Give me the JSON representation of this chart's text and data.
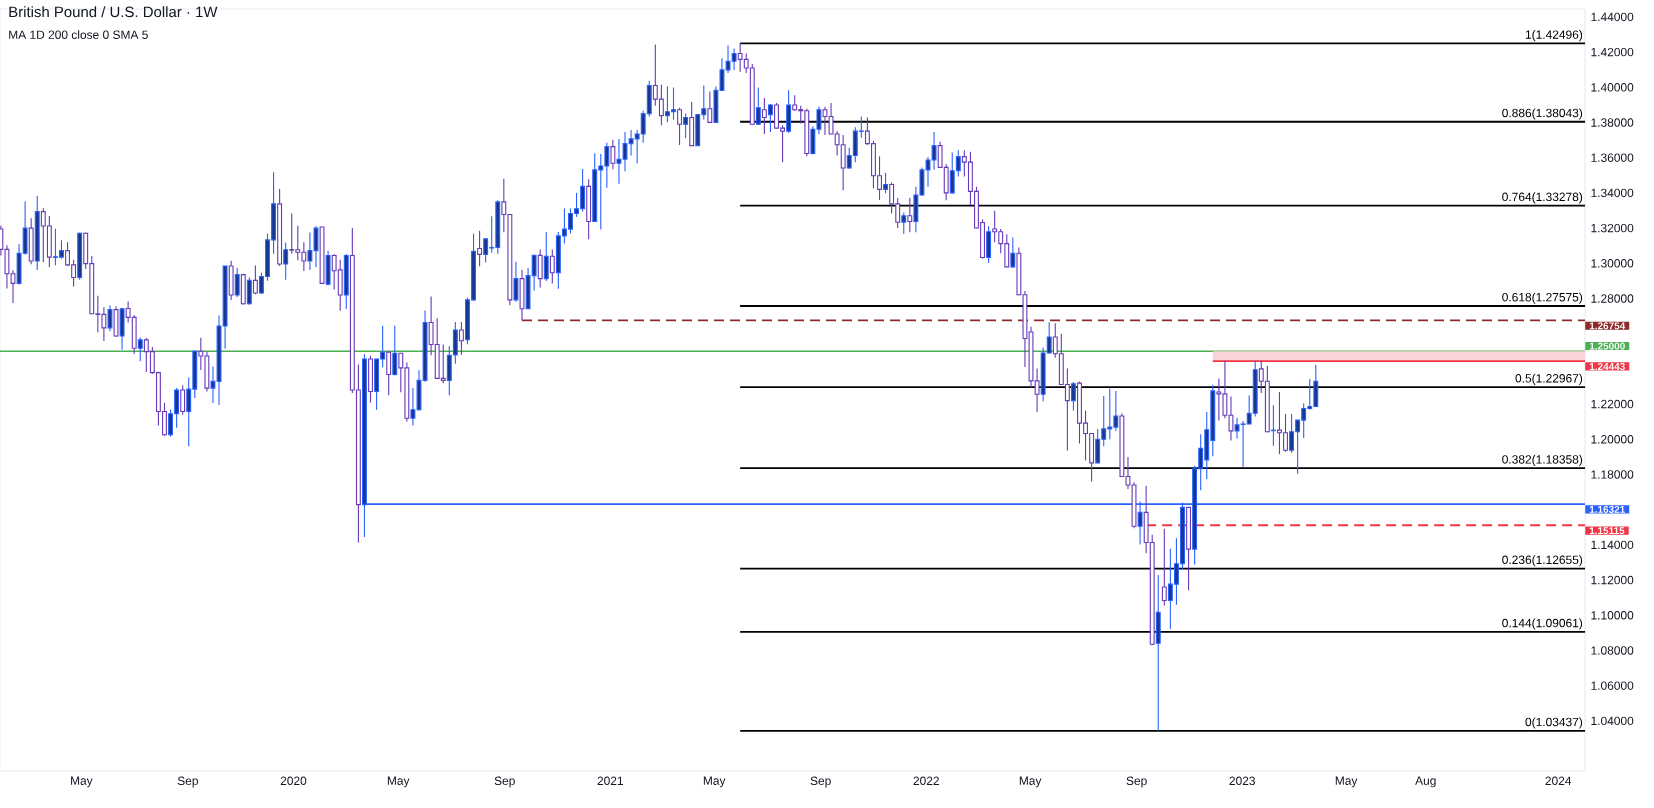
{
  "chart_data": {
    "type": "candlestick",
    "title": "British Pound / U.S. Dollar · 1W",
    "subtitle": "MA 1D 200 close 0 SMA 5",
    "x": [
      "2019-01-28",
      "2019-02-04",
      "2019-02-11",
      "2019-02-18",
      "2019-02-25",
      "2019-03-04",
      "2019-03-11",
      "2019-03-18",
      "2019-03-25",
      "2019-04-01",
      "2019-04-08",
      "2019-04-15",
      "2019-04-22",
      "2019-04-29",
      "2019-05-06",
      "2019-05-13",
      "2019-05-20",
      "2019-05-27",
      "2019-06-03",
      "2019-06-10",
      "2019-06-17",
      "2019-06-24",
      "2019-07-01",
      "2019-07-08",
      "2019-07-15",
      "2019-07-22",
      "2019-07-29",
      "2019-08-05",
      "2019-08-12",
      "2019-08-19",
      "2019-08-26",
      "2019-09-02",
      "2019-09-09",
      "2019-09-16",
      "2019-09-23",
      "2019-09-30",
      "2019-10-07",
      "2019-10-14",
      "2019-10-21",
      "2019-10-28",
      "2019-11-04",
      "2019-11-11",
      "2019-11-18",
      "2019-11-25",
      "2019-12-02",
      "2019-12-09",
      "2019-12-16",
      "2019-12-23",
      "2019-12-30",
      "2020-01-06",
      "2020-01-13",
      "2020-01-20",
      "2020-01-27",
      "2020-02-03",
      "2020-02-10",
      "2020-02-17",
      "2020-02-24",
      "2020-03-02",
      "2020-03-09",
      "2020-03-16",
      "2020-03-23",
      "2020-03-30",
      "2020-04-06",
      "2020-04-13",
      "2020-04-20",
      "2020-04-27",
      "2020-05-04",
      "2020-05-11",
      "2020-05-18",
      "2020-05-25",
      "2020-06-01",
      "2020-06-08",
      "2020-06-15",
      "2020-06-22",
      "2020-06-29",
      "2020-07-06",
      "2020-07-13",
      "2020-07-20",
      "2020-07-27",
      "2020-08-03",
      "2020-08-10",
      "2020-08-17",
      "2020-08-24",
      "2020-08-31",
      "2020-09-07",
      "2020-09-14",
      "2020-09-21",
      "2020-09-28",
      "2020-10-05",
      "2020-10-12",
      "2020-10-19",
      "2020-10-26",
      "2020-11-02",
      "2020-11-09",
      "2020-11-16",
      "2020-11-23",
      "2020-11-30",
      "2020-12-07",
      "2020-12-14",
      "2020-12-21",
      "2020-12-28",
      "2021-01-04",
      "2021-01-11",
      "2021-01-18",
      "2021-01-25",
      "2021-02-01",
      "2021-02-08",
      "2021-02-15",
      "2021-02-22",
      "2021-03-01",
      "2021-03-08",
      "2021-03-15",
      "2021-03-22",
      "2021-03-29",
      "2021-04-05",
      "2021-04-12",
      "2021-04-19",
      "2021-04-26",
      "2021-05-03",
      "2021-05-10",
      "2021-05-17",
      "2021-05-24",
      "2021-05-31",
      "2021-06-07",
      "2021-06-14",
      "2021-06-21",
      "2021-06-28",
      "2021-07-05",
      "2021-07-12",
      "2021-07-19",
      "2021-07-26",
      "2021-08-02",
      "2021-08-09",
      "2021-08-16",
      "2021-08-23",
      "2021-08-30",
      "2021-09-06",
      "2021-09-13",
      "2021-09-20",
      "2021-09-27",
      "2021-10-04",
      "2021-10-11",
      "2021-10-18",
      "2021-10-25",
      "2021-11-01",
      "2021-11-08",
      "2021-11-15",
      "2021-11-22",
      "2021-11-29",
      "2021-12-06",
      "2021-12-13",
      "2021-12-20",
      "2021-12-27",
      "2022-01-03",
      "2022-01-10",
      "2022-01-17",
      "2022-01-24",
      "2022-01-31",
      "2022-02-07",
      "2022-02-14",
      "2022-02-21",
      "2022-02-28",
      "2022-03-07",
      "2022-03-14",
      "2022-03-21",
      "2022-03-28",
      "2022-04-04",
      "2022-04-11",
      "2022-04-18",
      "2022-04-25",
      "2022-05-02",
      "2022-05-09",
      "2022-05-16",
      "2022-05-23",
      "2022-05-30",
      "2022-06-06",
      "2022-06-13",
      "2022-06-20",
      "2022-06-27",
      "2022-07-04",
      "2022-07-11",
      "2022-07-18",
      "2022-07-25",
      "2022-08-01",
      "2022-08-08",
      "2022-08-15",
      "2022-08-22",
      "2022-08-29",
      "2022-09-05",
      "2022-09-12",
      "2022-09-19",
      "2022-09-26",
      "2022-10-03",
      "2022-10-10",
      "2022-10-17",
      "2022-10-24",
      "2022-10-31",
      "2022-11-07",
      "2022-11-14",
      "2022-11-21",
      "2022-11-28",
      "2022-12-05",
      "2022-12-12",
      "2022-12-19",
      "2022-12-26",
      "2023-01-02",
      "2023-01-09",
      "2023-01-16",
      "2023-01-23",
      "2023-01-30",
      "2023-02-06",
      "2023-02-13",
      "2023-02-20",
      "2023-02-27",
      "2023-03-06",
      "2023-03-13",
      "2023-03-20",
      "2023-03-27"
    ],
    "ohlc": [
      [
        1.3195,
        1.3213,
        1.3044,
        1.3079
      ],
      [
        1.3079,
        1.3103,
        1.2857,
        1.2941
      ],
      [
        1.2941,
        1.296,
        1.2774,
        1.2886
      ],
      [
        1.2886,
        1.3109,
        1.288,
        1.3057
      ],
      [
        1.3057,
        1.3351,
        1.305,
        1.32
      ],
      [
        1.32,
        1.3256,
        1.2995,
        1.3013
      ],
      [
        1.3013,
        1.3384,
        1.2962,
        1.3294
      ],
      [
        1.3294,
        1.3313,
        1.3006,
        1.3212
      ],
      [
        1.3212,
        1.3269,
        1.2978,
        1.3035
      ],
      [
        1.3033,
        1.3197,
        1.2989,
        1.3037
      ],
      [
        1.3035,
        1.3131,
        1.3026,
        1.3072
      ],
      [
        1.3072,
        1.312,
        1.2984,
        1.2991
      ],
      [
        1.2991,
        1.302,
        1.2868,
        1.2919
      ],
      [
        1.2919,
        1.3175,
        1.2906,
        1.3171
      ],
      [
        1.3171,
        1.3175,
        1.2967,
        1.2998
      ],
      [
        1.2998,
        1.3041,
        1.271,
        1.2713
      ],
      [
        1.2713,
        1.2816,
        1.2609,
        1.271
      ],
      [
        1.271,
        1.275,
        1.2559,
        1.2633
      ],
      [
        1.2633,
        1.2761,
        1.2614,
        1.2737
      ],
      [
        1.2737,
        1.2756,
        1.2581,
        1.2587
      ],
      [
        1.2587,
        1.2747,
        1.2509,
        1.2741
      ],
      [
        1.2743,
        1.2783,
        1.2664,
        1.2693
      ],
      [
        1.2693,
        1.2706,
        1.2484,
        1.2517
      ],
      [
        1.2517,
        1.2579,
        1.2443,
        1.2565
      ],
      [
        1.2565,
        1.2577,
        1.2383,
        1.2498
      ],
      [
        1.2498,
        1.2524,
        1.2373,
        1.2379
      ],
      [
        1.2379,
        1.2384,
        1.2079,
        1.2158
      ],
      [
        1.2158,
        1.2208,
        1.202,
        1.2026
      ],
      [
        1.2026,
        1.2169,
        1.2015,
        1.2145
      ],
      [
        1.2145,
        1.2291,
        1.2065,
        1.228
      ],
      [
        1.228,
        1.2307,
        1.214,
        1.2158
      ],
      [
        1.2158,
        1.2351,
        1.196,
        1.2285
      ],
      [
        1.2285,
        1.2506,
        1.2234,
        1.25
      ],
      [
        1.25,
        1.2577,
        1.2394,
        1.2473
      ],
      [
        1.2473,
        1.2498,
        1.2272,
        1.2291
      ],
      [
        1.2291,
        1.2414,
        1.2206,
        1.2329
      ],
      [
        1.2329,
        1.2704,
        1.2195,
        1.2644
      ],
      [
        1.2644,
        1.2985,
        1.2515,
        1.2985
      ],
      [
        1.2985,
        1.3015,
        1.2791,
        1.282
      ],
      [
        1.282,
        1.2974,
        1.2809,
        1.2936
      ],
      [
        1.2936,
        1.2941,
        1.2765,
        1.277
      ],
      [
        1.277,
        1.2919,
        1.2765,
        1.2903
      ],
      [
        1.2903,
        1.2987,
        1.2824,
        1.2831
      ],
      [
        1.2831,
        1.2947,
        1.2826,
        1.2925
      ],
      [
        1.2925,
        1.3169,
        1.2901,
        1.3133
      ],
      [
        1.3133,
        1.3517,
        1.3055,
        1.3338
      ],
      [
        1.3338,
        1.3423,
        1.2985,
        1.2996
      ],
      [
        1.2996,
        1.3118,
        1.2906,
        1.3077
      ],
      [
        1.3078,
        1.3283,
        1.3055,
        1.3075
      ],
      [
        1.3077,
        1.3213,
        1.3017,
        1.3063
      ],
      [
        1.3063,
        1.312,
        1.2956,
        1.3013
      ],
      [
        1.3013,
        1.3175,
        1.2962,
        1.3072
      ],
      [
        1.3072,
        1.321,
        1.2978,
        1.32
      ],
      [
        1.3206,
        1.3208,
        1.2884,
        1.2886
      ],
      [
        1.2881,
        1.307,
        1.2875,
        1.3044
      ],
      [
        1.3044,
        1.3053,
        1.2851,
        1.2958
      ],
      [
        1.2963,
        1.302,
        1.273,
        1.282
      ],
      [
        1.282,
        1.3053,
        1.2741,
        1.3044
      ],
      [
        1.3044,
        1.32,
        1.2263,
        1.228
      ],
      [
        1.228,
        1.2425,
        1.1414,
        1.1629
      ],
      [
        1.1629,
        1.2484,
        1.1445,
        1.2456
      ],
      [
        1.2456,
        1.2475,
        1.2208,
        1.2272
      ],
      [
        1.2272,
        1.2458,
        1.2168,
        1.2456
      ],
      [
        1.2456,
        1.2645,
        1.241,
        1.2495
      ],
      [
        1.2495,
        1.2502,
        1.225,
        1.2368
      ],
      [
        1.2368,
        1.2645,
        1.2362,
        1.2489
      ],
      [
        1.2489,
        1.249,
        1.2267,
        1.2406
      ],
      [
        1.2406,
        1.2436,
        1.2101,
        1.212
      ],
      [
        1.212,
        1.2291,
        1.2079,
        1.2168
      ],
      [
        1.2168,
        1.2392,
        1.2162,
        1.2335
      ],
      [
        1.2335,
        1.2732,
        1.2327,
        1.2664
      ],
      [
        1.2664,
        1.2811,
        1.2478,
        1.2539
      ],
      [
        1.2539,
        1.2688,
        1.2344,
        1.2346
      ],
      [
        1.2346,
        1.2539,
        1.2318,
        1.2335
      ],
      [
        1.2335,
        1.253,
        1.225,
        1.2478
      ],
      [
        1.248,
        1.2667,
        1.243,
        1.2621
      ],
      [
        1.2621,
        1.2667,
        1.248,
        1.256
      ],
      [
        1.2566,
        1.2805,
        1.254,
        1.2792
      ],
      [
        1.2792,
        1.3169,
        1.2786,
        1.3068
      ],
      [
        1.3084,
        1.3185,
        1.2983,
        1.3051
      ],
      [
        1.3051,
        1.3142,
        1.3005,
        1.3139
      ],
      [
        1.3087,
        1.3268,
        1.306,
        1.309
      ],
      [
        1.309,
        1.3358,
        1.3055,
        1.3349
      ],
      [
        1.3349,
        1.3481,
        1.3176,
        1.3277
      ],
      [
        1.3277,
        1.328,
        1.2762,
        1.2792
      ],
      [
        1.2792,
        1.3009,
        1.2781,
        1.2913
      ],
      [
        1.2913,
        1.2963,
        1.2676,
        1.2742
      ],
      [
        1.2742,
        1.2974,
        1.274,
        1.293
      ],
      [
        1.293,
        1.3047,
        1.2845,
        1.3045
      ],
      [
        1.3045,
        1.3079,
        1.2862,
        1.2913
      ],
      [
        1.2913,
        1.3178,
        1.29,
        1.304
      ],
      [
        1.304,
        1.3079,
        1.2886,
        1.2946
      ],
      [
        1.2946,
        1.3178,
        1.2856,
        1.3156
      ],
      [
        1.3156,
        1.3312,
        1.3112,
        1.3194
      ],
      [
        1.3194,
        1.3312,
        1.317,
        1.3283
      ],
      [
        1.3283,
        1.34,
        1.3264,
        1.331
      ],
      [
        1.331,
        1.3536,
        1.3294,
        1.3437
      ],
      [
        1.3437,
        1.3477,
        1.3137,
        1.3238
      ],
      [
        1.3238,
        1.3626,
        1.3236,
        1.3531
      ],
      [
        1.3531,
        1.3621,
        1.3192,
        1.3553
      ],
      [
        1.3553,
        1.3685,
        1.343,
        1.3663
      ],
      [
        1.3663,
        1.3702,
        1.3534,
        1.3569
      ],
      [
        1.3569,
        1.3707,
        1.3452,
        1.3591
      ],
      [
        1.3591,
        1.3746,
        1.3523,
        1.368
      ],
      [
        1.368,
        1.3757,
        1.3612,
        1.3707
      ],
      [
        1.3707,
        1.3757,
        1.3567,
        1.3735
      ],
      [
        1.3735,
        1.3867,
        1.3685,
        1.385
      ],
      [
        1.385,
        1.4038,
        1.3834,
        1.401
      ],
      [
        1.401,
        1.4244,
        1.3895,
        1.3933
      ],
      [
        1.3933,
        1.4016,
        1.3784,
        1.3839
      ],
      [
        1.3839,
        1.4005,
        1.3801,
        1.3861
      ],
      [
        1.3861,
        1.3999,
        1.3816,
        1.3873
      ],
      [
        1.3873,
        1.3884,
        1.3672,
        1.379
      ],
      [
        1.379,
        1.3851,
        1.3711,
        1.3829
      ],
      [
        1.3829,
        1.3917,
        1.3667,
        1.3669
      ],
      [
        1.3669,
        1.3847,
        1.3667,
        1.3845
      ],
      [
        1.3845,
        1.401,
        1.3817,
        1.3878
      ],
      [
        1.3878,
        1.3977,
        1.3799,
        1.3801
      ],
      [
        1.3801,
        1.4005,
        1.3799,
        1.3983
      ],
      [
        1.3983,
        1.4165,
        1.3981,
        1.4099
      ],
      [
        1.4099,
        1.4238,
        1.4082,
        1.4148
      ],
      [
        1.4148,
        1.422,
        1.4099,
        1.4192
      ],
      [
        1.4192,
        1.425,
        1.4088,
        1.4159
      ],
      [
        1.4159,
        1.4192,
        1.4082,
        1.411
      ],
      [
        1.411,
        1.4132,
        1.3788,
        1.379
      ],
      [
        1.379,
        1.3999,
        1.3786,
        1.3884
      ],
      [
        1.3873,
        1.3939,
        1.3735,
        1.3829
      ],
      [
        1.3845,
        1.3906,
        1.3746,
        1.39
      ],
      [
        1.39,
        1.3911,
        1.3766,
        1.3768
      ],
      [
        1.3768,
        1.3784,
        1.3575,
        1.3751
      ],
      [
        1.3751,
        1.3983,
        1.374,
        1.39
      ],
      [
        1.39,
        1.3955,
        1.3867,
        1.3873
      ],
      [
        1.3873,
        1.3895,
        1.3795,
        1.3867
      ],
      [
        1.3867,
        1.3878,
        1.3608,
        1.3624
      ],
      [
        1.3624,
        1.3779,
        1.3619,
        1.3762
      ],
      [
        1.3762,
        1.3889,
        1.3735,
        1.3873
      ],
      [
        1.3873,
        1.3889,
        1.3729,
        1.3834
      ],
      [
        1.3834,
        1.3911,
        1.3733,
        1.3735
      ],
      [
        1.3735,
        1.3751,
        1.3613,
        1.3674
      ],
      [
        1.3674,
        1.3729,
        1.3415,
        1.3542
      ],
      [
        1.3542,
        1.3657,
        1.3536,
        1.3613
      ],
      [
        1.3613,
        1.3773,
        1.3575,
        1.3751
      ],
      [
        1.375,
        1.3834,
        1.3713,
        1.3752
      ],
      [
        1.3751,
        1.3829,
        1.3674,
        1.368
      ],
      [
        1.368,
        1.3696,
        1.3426,
        1.3498
      ],
      [
        1.3498,
        1.3608,
        1.336,
        1.342
      ],
      [
        1.342,
        1.3514,
        1.3398,
        1.3448
      ],
      [
        1.3448,
        1.3459,
        1.3283,
        1.3338
      ],
      [
        1.3338,
        1.3371,
        1.32,
        1.3233
      ],
      [
        1.3234,
        1.3289,
        1.3167,
        1.327
      ],
      [
        1.327,
        1.3372,
        1.3177,
        1.3238
      ],
      [
        1.3238,
        1.3435,
        1.3177,
        1.3388
      ],
      [
        1.3388,
        1.3545,
        1.3386,
        1.3531
      ],
      [
        1.3531,
        1.3604,
        1.3435,
        1.3587
      ],
      [
        1.3587,
        1.3746,
        1.3531,
        1.3669
      ],
      [
        1.3669,
        1.3691,
        1.3543,
        1.3545
      ],
      [
        1.3545,
        1.3565,
        1.3358,
        1.34
      ],
      [
        1.34,
        1.363,
        1.3394,
        1.3526
      ],
      [
        1.3526,
        1.3642,
        1.3494,
        1.3606
      ],
      [
        1.3606,
        1.3642,
        1.3494,
        1.3575
      ],
      [
        1.3575,
        1.3634,
        1.3331,
        1.3409
      ],
      [
        1.3409,
        1.3435,
        1.3199,
        1.3201
      ],
      [
        1.3232,
        1.325,
        1.3027,
        1.3033
      ],
      [
        1.3033,
        1.3211,
        1.3002,
        1.3179
      ],
      [
        1.3195,
        1.3299,
        1.312,
        1.3179
      ],
      [
        1.3179,
        1.3195,
        1.3057,
        1.3112
      ],
      [
        1.3112,
        1.3165,
        1.2978,
        1.298
      ],
      [
        1.298,
        1.3146,
        1.2974,
        1.3057
      ],
      [
        1.3057,
        1.309,
        1.2819,
        1.2821
      ],
      [
        1.2821,
        1.2843,
        1.2411,
        1.2573
      ],
      [
        1.261,
        1.264,
        1.2293,
        1.2332
      ],
      [
        1.2332,
        1.2403,
        1.2155,
        1.2256
      ],
      [
        1.2256,
        1.2521,
        1.2216,
        1.249
      ],
      [
        1.249,
        1.2665,
        1.2488,
        1.2581
      ],
      [
        1.2581,
        1.2659,
        1.2463,
        1.2486
      ],
      [
        1.2486,
        1.26,
        1.2309,
        1.2311
      ],
      [
        1.2311,
        1.2403,
        1.1937,
        1.222
      ],
      [
        1.222,
        1.2325,
        1.2163,
        1.2315
      ],
      [
        1.2319,
        1.2328,
        1.1976,
        1.2092
      ],
      [
        1.2092,
        1.2163,
        1.188,
        1.2033
      ],
      [
        1.2033,
        1.2034,
        1.176,
        1.1866
      ],
      [
        1.1866,
        1.2059,
        1.1864,
        1.2
      ],
      [
        1.2,
        1.2246,
        1.196,
        1.2059
      ],
      [
        1.2059,
        1.2289,
        1.2,
        1.2069
      ],
      [
        1.2069,
        1.2275,
        1.2049,
        1.2132
      ],
      [
        1.2132,
        1.2147,
        1.1787,
        1.1789
      ],
      [
        1.1789,
        1.1899,
        1.1718,
        1.174
      ],
      [
        1.174,
        1.1756,
        1.1495,
        1.1506
      ],
      [
        1.1506,
        1.1646,
        1.1402,
        1.1585
      ],
      [
        1.1585,
        1.1736,
        1.1352,
        1.1414
      ],
      [
        1.1414,
        1.1458,
        1.083,
        1.0835
      ],
      [
        1.0841,
        1.1229,
        1.0344,
        1.1017
      ],
      [
        1.1161,
        1.1492,
        1.1056,
        1.1084
      ],
      [
        1.1084,
        1.1378,
        1.0922,
        1.1177
      ],
      [
        1.1177,
        1.1438,
        1.106,
        1.1293
      ],
      [
        1.1293,
        1.164,
        1.126,
        1.1613
      ],
      [
        1.1613,
        1.1615,
        1.1142,
        1.1376
      ],
      [
        1.1376,
        1.185,
        1.1289,
        1.1833
      ],
      [
        1.1833,
        1.2028,
        1.171,
        1.1949
      ],
      [
        1.1883,
        1.2155,
        1.1775,
        1.2054
      ],
      [
        1.1993,
        1.231,
        1.1903,
        1.2275
      ],
      [
        1.2269,
        1.2345,
        1.2107,
        1.2258
      ],
      [
        1.2258,
        1.2446,
        1.212,
        1.2137
      ],
      [
        1.2137,
        1.2243,
        1.1993,
        1.2048
      ],
      [
        1.2048,
        1.2122,
        1.2004,
        1.2082
      ],
      [
        1.2084,
        1.2104,
        1.1843,
        1.2087
      ],
      [
        1.2087,
        1.2249,
        1.2085,
        1.2148
      ],
      [
        1.2148,
        1.2447,
        1.213,
        1.2395
      ],
      [
        1.24,
        1.2447,
        1.2263,
        1.233
      ],
      [
        1.233,
        1.2418,
        1.204,
        1.2043
      ],
      [
        1.2049,
        1.2194,
        1.1964,
        1.2052
      ],
      [
        1.2052,
        1.2269,
        1.1916,
        1.2037
      ],
      [
        1.2037,
        1.2144,
        1.1929,
        1.1938
      ],
      [
        1.1938,
        1.2144,
        1.1923,
        1.2043
      ],
      [
        1.2043,
        1.211,
        1.1804,
        1.2109
      ],
      [
        1.2109,
        1.2205,
        1.2008,
        1.2175
      ],
      [
        1.2175,
        1.2343,
        1.2168,
        1.2186
      ],
      [
        1.2186,
        1.2424,
        1.2186,
        1.233
      ]
    ],
    "colors": [
      "#673ab7",
      "#673ab7",
      "#673ab7",
      "#2962ff",
      "#2962ff",
      "#673ab7",
      "#2962ff",
      "#673ab7",
      "#673ab7",
      "#2962ff",
      "#2962ff",
      "#673ab7",
      "#673ab7",
      "#2962ff",
      "#673ab7",
      "#673ab7",
      "#673ab7",
      "#673ab7",
      "#2962ff",
      "#673ab7",
      "#2962ff",
      "#673ab7",
      "#673ab7",
      "#2962ff",
      "#673ab7",
      "#673ab7",
      "#673ab7",
      "#673ab7",
      "#2962ff",
      "#2962ff",
      "#673ab7",
      "#2962ff",
      "#2962ff",
      "#673ab7",
      "#673ab7",
      "#2962ff",
      "#2962ff",
      "#2962ff",
      "#673ab7",
      "#2962ff",
      "#673ab7",
      "#2962ff",
      "#673ab7",
      "#2962ff",
      "#2962ff",
      "#2962ff",
      "#673ab7",
      "#2962ff",
      "#673ab7",
      "#673ab7",
      "#673ab7",
      "#2962ff",
      "#2962ff",
      "#673ab7",
      "#2962ff",
      "#673ab7",
      "#673ab7",
      "#2962ff",
      "#673ab7",
      "#673ab7",
      "#2962ff",
      "#673ab7",
      "#2962ff",
      "#2962ff",
      "#673ab7",
      "#2962ff",
      "#673ab7",
      "#673ab7",
      "#2962ff",
      "#2962ff",
      "#2962ff",
      "#673ab7",
      "#673ab7",
      "#673ab7",
      "#2962ff",
      "#2962ff",
      "#673ab7",
      "#2962ff",
      "#2962ff",
      "#673ab7",
      "#2962ff",
      "#2962ff",
      "#2962ff",
      "#673ab7",
      "#673ab7",
      "#2962ff",
      "#673ab7",
      "#2962ff",
      "#2962ff",
      "#673ab7",
      "#2962ff",
      "#673ab7",
      "#2962ff",
      "#2962ff",
      "#2962ff",
      "#2962ff",
      "#2962ff",
      "#673ab7",
      "#2962ff",
      "#2962ff",
      "#2962ff",
      "#673ab7",
      "#2962ff",
      "#2962ff",
      "#2962ff",
      "#2962ff",
      "#2962ff",
      "#2962ff",
      "#673ab7",
      "#673ab7",
      "#2962ff",
      "#2962ff",
      "#673ab7",
      "#2962ff",
      "#673ab7",
      "#2962ff",
      "#2962ff",
      "#673ab7",
      "#2962ff",
      "#2962ff",
      "#2962ff",
      "#2962ff",
      "#673ab7",
      "#673ab7",
      "#673ab7",
      "#2962ff",
      "#673ab7",
      "#2962ff",
      "#673ab7",
      "#673ab7",
      "#2962ff",
      "#673ab7",
      "#673ab7",
      "#673ab7",
      "#2962ff",
      "#2962ff",
      "#673ab7",
      "#673ab7",
      "#673ab7",
      "#673ab7",
      "#2962ff",
      "#2962ff",
      "#2962ff",
      "#673ab7",
      "#673ab7",
      "#673ab7",
      "#2962ff",
      "#673ab7",
      "#673ab7",
      "#2962ff",
      "#673ab7",
      "#2962ff",
      "#2962ff",
      "#2962ff",
      "#2962ff",
      "#673ab7",
      "#673ab7",
      "#2962ff",
      "#2962ff",
      "#673ab7",
      "#673ab7",
      "#673ab7",
      "#673ab7",
      "#2962ff",
      "#673ab7",
      "#673ab7",
      "#673ab7",
      "#2962ff",
      "#673ab7",
      "#673ab7",
      "#673ab7",
      "#673ab7",
      "#2962ff",
      "#2962ff",
      "#673ab7",
      "#673ab7",
      "#673ab7",
      "#2962ff",
      "#673ab7",
      "#673ab7",
      "#673ab7",
      "#2962ff",
      "#2962ff",
      "#2962ff",
      "#2962ff",
      "#673ab7",
      "#673ab7",
      "#673ab7",
      "#2962ff",
      "#673ab7",
      "#673ab7",
      "#2962ff",
      "#673ab7",
      "#2962ff",
      "#2962ff",
      "#2962ff",
      "#673ab7",
      "#2962ff",
      "#2962ff",
      "#2962ff",
      "#2962ff",
      "#673ab7",
      "#673ab7",
      "#673ab7",
      "#2962ff",
      "#2962ff",
      "#2962ff",
      "#2962ff",
      "#673ab7",
      "#673ab7",
      "#2962ff",
      "#673ab7",
      "#673ab7",
      "#2962ff",
      "#2962ff",
      "#2962ff",
      "#2962ff",
      "#2962ff"
    ],
    "series": [
      {
        "type": "line",
        "color": "#000000",
        "x": [
          "2021-05-31",
          "2024-02-01"
        ],
        "values": [
          1.42496,
          1.42496
        ]
      },
      {
        "type": "line",
        "color": "#000000",
        "x": [
          "2021-05-31",
          "2024-02-01"
        ],
        "values": [
          1.38043,
          1.38043
        ]
      },
      {
        "type": "line",
        "color": "#000000",
        "x": [
          "2021-05-31",
          "2024-02-01"
        ],
        "values": [
          1.33278,
          1.33278
        ]
      },
      {
        "type": "line",
        "color": "#000000",
        "x": [
          "2021-05-31",
          "2024-02-01"
        ],
        "values": [
          1.27575,
          1.27575
        ]
      },
      {
        "type": "line",
        "color": "#000000",
        "x": [
          "2021-05-31",
          "2024-02-01"
        ],
        "values": [
          1.22967,
          1.22967
        ]
      },
      {
        "type": "line",
        "color": "#000000",
        "x": [
          "2021-05-31",
          "2024-02-01"
        ],
        "values": [
          1.18358,
          1.18358
        ]
      },
      {
        "type": "line",
        "color": "#000000",
        "x": [
          "2021-05-31",
          "2024-02-01"
        ],
        "values": [
          1.12655,
          1.12655
        ]
      },
      {
        "type": "line",
        "color": "#000000",
        "x": [
          "2021-05-31",
          "2024-02-01"
        ],
        "values": [
          1.09061,
          1.09061
        ]
      },
      {
        "type": "line",
        "color": "#000000",
        "x": [
          "2021-05-31",
          "2024-02-01"
        ],
        "values": [
          1.03437,
          1.03437
        ]
      },
      {
        "type": "line",
        "name": "1.26754",
        "color": "#8e2a2a",
        "line_style": "dashed",
        "x": [
          "2020-09-21",
          "2024-02-01"
        ],
        "values": [
          1.26754,
          1.26754
        ]
      },
      {
        "type": "line",
        "name": "1.24443",
        "color": "#f23645",
        "x": [
          "2022-11-28",
          "2024-02-01"
        ],
        "values": [
          1.24443,
          1.24443
        ],
        "lower": [
          1.24443,
          1.24443
        ],
        "upper": [
          1.25,
          1.25
        ]
      },
      {
        "type": "line",
        "name": "1.16321",
        "color": "#2962ff",
        "x": [
          "2020-03-23",
          "2024-02-01"
        ],
        "values": [
          1.16321,
          1.16321
        ]
      },
      {
        "type": "line",
        "name": "1.15115",
        "color": "#f23645",
        "line_style": "dashed",
        "x": [
          "2022-09-12",
          "2024-02-01"
        ],
        "values": [
          1.15115,
          1.15115
        ]
      }
    ],
    "ref_lines": [
      {
        "axis": "y",
        "value": 1.25,
        "label": "1.25000",
        "color": "#4caf50"
      }
    ],
    "annotations": [
      {
        "text": "1(1.42496)",
        "x": "2024-02-01",
        "y": 1.42496
      },
      {
        "text": "0.886(1.38043)",
        "x": "2024-02-01",
        "y": 1.38043
      },
      {
        "text": "0.764(1.33278)",
        "x": "2024-02-01",
        "y": 1.33278
      },
      {
        "text": "0.618(1.27575)",
        "x": "2024-02-01",
        "y": 1.27575
      },
      {
        "text": "0.5(1.22967)",
        "x": "2024-02-01",
        "y": 1.22967
      },
      {
        "text": "0.382(1.18358)",
        "x": "2024-02-01",
        "y": 1.18358
      },
      {
        "text": "0.236(1.12655)",
        "x": "2024-02-01",
        "y": 1.12655
      },
      {
        "text": "0.144(1.09061)",
        "x": "2024-02-01",
        "y": 1.09061
      },
      {
        "text": "0(1.03437)",
        "x": "2024-02-01",
        "y": 1.03437
      }
    ],
    "xlim": [
      "2019-01-27",
      "2024-02-01"
    ],
    "xticks": [
      {
        "value": "2019-05-01",
        "label": "May"
      },
      {
        "value": "2019-09-01",
        "label": "Sep"
      },
      {
        "value": "2020-01-01",
        "label": "2020"
      },
      {
        "value": "2020-05-01",
        "label": "May"
      },
      {
        "value": "2020-09-01",
        "label": "Sep"
      },
      {
        "value": "2021-01-01",
        "label": "2021"
      },
      {
        "value": "2021-05-01",
        "label": "May"
      },
      {
        "value": "2021-09-01",
        "label": "Sep"
      },
      {
        "value": "2022-01-01",
        "label": "2022"
      },
      {
        "value": "2022-05-01",
        "label": "May"
      },
      {
        "value": "2022-09-01",
        "label": "Sep"
      },
      {
        "value": "2023-01-01",
        "label": "2023"
      },
      {
        "value": "2023-05-01",
        "label": "May"
      },
      {
        "value": "2023-08-01",
        "label": "Aug"
      },
      {
        "value": "2024-01-01",
        "label": "2024"
      }
    ],
    "ylim": [
      1.0115,
      1.4445
    ],
    "yticks": [
      {
        "value": 1.04,
        "label": "1.04000"
      },
      {
        "value": 1.06,
        "label": "1.06000"
      },
      {
        "value": 1.08,
        "label": "1.08000"
      },
      {
        "value": 1.1,
        "label": "1.10000"
      },
      {
        "value": 1.12,
        "label": "1.12000"
      },
      {
        "value": 1.14,
        "label": "1.14000"
      },
      {
        "value": 1.18,
        "label": "1.18000"
      },
      {
        "value": 1.2,
        "label": "1.20000"
      },
      {
        "value": 1.22,
        "label": "1.22000"
      },
      {
        "value": 1.28,
        "label": "1.28000"
      },
      {
        "value": 1.3,
        "label": "1.30000"
      },
      {
        "value": 1.32,
        "label": "1.32000"
      },
      {
        "value": 1.34,
        "label": "1.34000"
      },
      {
        "value": 1.36,
        "label": "1.36000"
      },
      {
        "value": 1.38,
        "label": "1.38000"
      },
      {
        "value": 1.4,
        "label": "1.40000"
      },
      {
        "value": 1.42,
        "label": "1.42000"
      },
      {
        "value": 1.44,
        "label": "1.44000"
      }
    ],
    "grid": false,
    "legend": "right"
  }
}
